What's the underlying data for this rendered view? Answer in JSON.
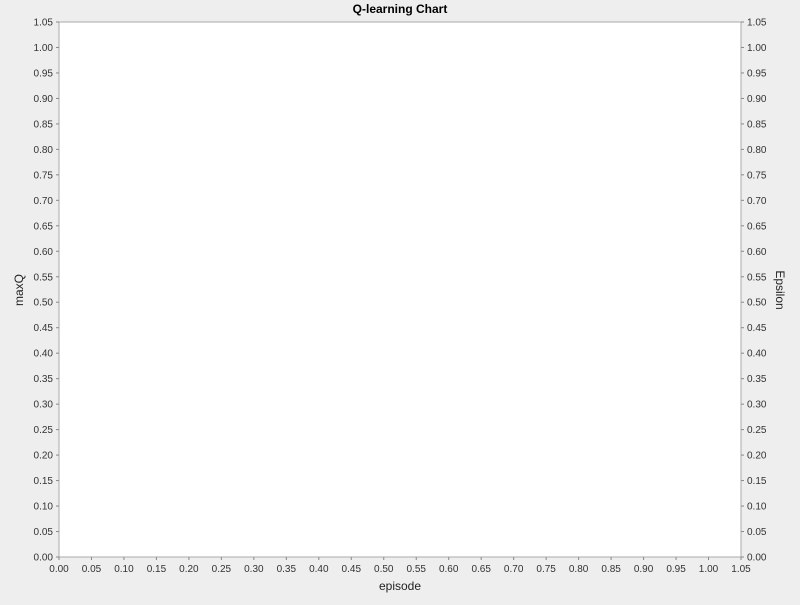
{
  "chart_data": {
    "type": "line",
    "title": "Q-learning Chart",
    "xlabel": "episode",
    "ylabel_left": "maxQ",
    "ylabel_right": "Epsilon",
    "xlim": [
      0,
      1.05
    ],
    "ylim_left": [
      0,
      1.05
    ],
    "ylim_right": [
      0,
      1.05
    ],
    "x_ticks": [
      "0.00",
      "0.05",
      "0.10",
      "0.15",
      "0.20",
      "0.25",
      "0.30",
      "0.35",
      "0.40",
      "0.45",
      "0.50",
      "0.55",
      "0.60",
      "0.65",
      "0.70",
      "0.75",
      "0.80",
      "0.85",
      "0.90",
      "0.95",
      "1.00",
      "1.05"
    ],
    "y_ticks_left": [
      "0.00",
      "0.05",
      "0.10",
      "0.15",
      "0.20",
      "0.25",
      "0.30",
      "0.35",
      "0.40",
      "0.45",
      "0.50",
      "0.55",
      "0.60",
      "0.65",
      "0.70",
      "0.75",
      "0.80",
      "0.85",
      "0.90",
      "0.95",
      "1.00",
      "1.05"
    ],
    "y_ticks_right": [
      "0.00",
      "0.05",
      "0.10",
      "0.15",
      "0.20",
      "0.25",
      "0.30",
      "0.35",
      "0.40",
      "0.45",
      "0.50",
      "0.55",
      "0.60",
      "0.65",
      "0.70",
      "0.75",
      "0.80",
      "0.85",
      "0.90",
      "0.95",
      "1.00",
      "1.05"
    ],
    "series": [],
    "grid": false,
    "plot_background": "#ffffff",
    "chart_background": "#eeeeee"
  }
}
